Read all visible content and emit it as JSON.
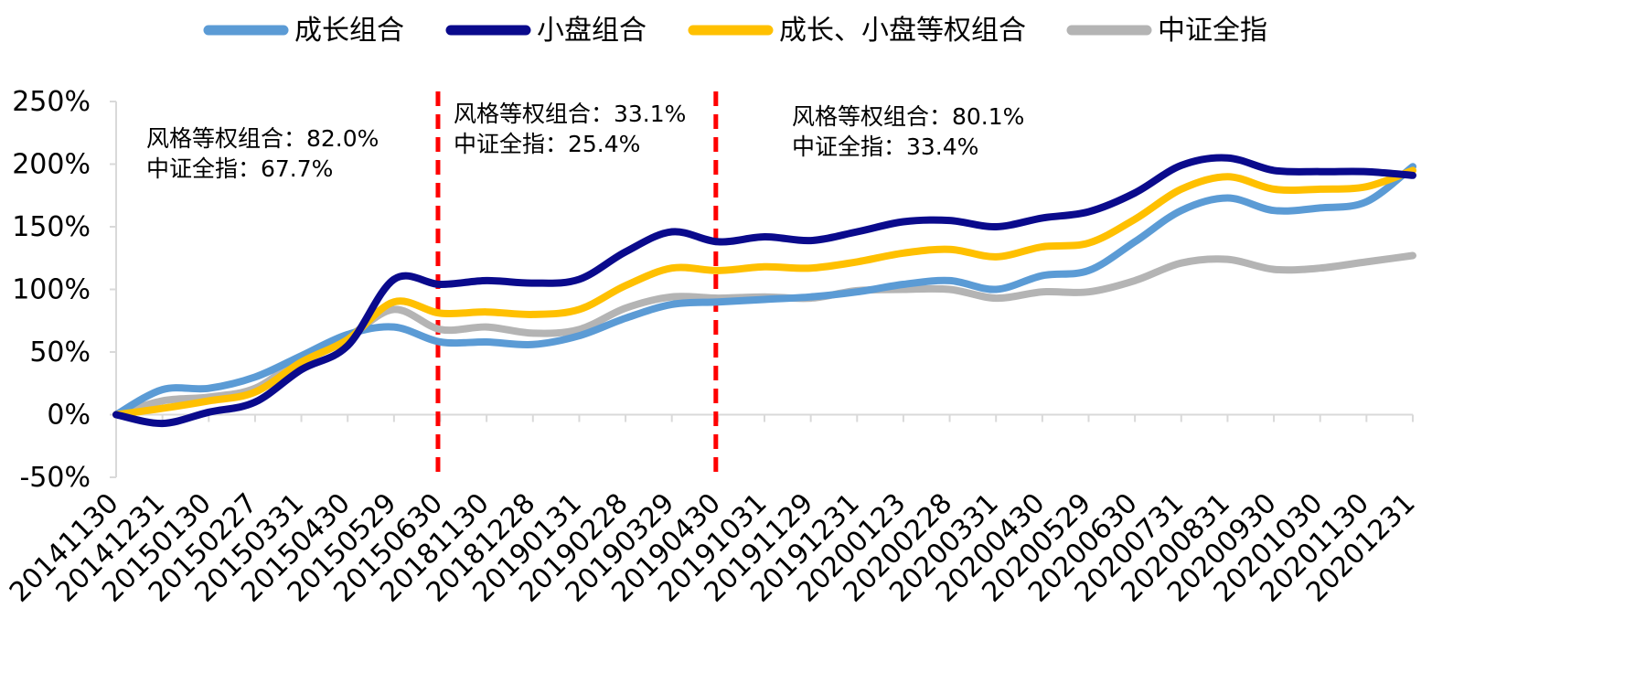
{
  "chart_data": {
    "type": "line",
    "title": "",
    "xlabel": "",
    "ylabel": "",
    "ylim": [
      -50,
      250
    ],
    "yticks": [
      "250%",
      "200%",
      "150%",
      "100%",
      "50%",
      "0%",
      "-50%"
    ],
    "ytick_values": [
      250,
      200,
      150,
      100,
      50,
      0,
      -50
    ],
    "categories": [
      "20141130",
      "20141231",
      "20150130",
      "20150227",
      "20150331",
      "20150430",
      "20150529",
      "20150630",
      "20181130",
      "20181228",
      "20190131",
      "20190228",
      "20190329",
      "20190430",
      "20191031",
      "20191129",
      "20191231",
      "20200123",
      "20200228",
      "20200331",
      "20200430",
      "20200529",
      "20200630",
      "20200731",
      "20200831",
      "20200930",
      "20201030",
      "20201130",
      "20201231"
    ],
    "legend_position": "top",
    "series": [
      {
        "name": "成长组合",
        "color": "#5B9BD5",
        "values": [
          0,
          20,
          21,
          30,
          47,
          64,
          70,
          58,
          58,
          56,
          63,
          77,
          88,
          90,
          92,
          94,
          98,
          104,
          107,
          100,
          111,
          115,
          138,
          163,
          173,
          163,
          165,
          170,
          198
        ]
      },
      {
        "name": "小盘组合",
        "color": "#0A0A8C",
        "values": [
          0,
          -7,
          2,
          10,
          36,
          55,
          108,
          104,
          107,
          105,
          108,
          130,
          146,
          138,
          142,
          139,
          146,
          154,
          155,
          150,
          157,
          162,
          177,
          199,
          205,
          195,
          194,
          194,
          191
        ]
      },
      {
        "name": "成长、小盘等权组合",
        "color": "#FFC000",
        "values": [
          0,
          5,
          11,
          18,
          42,
          60,
          90,
          81,
          82,
          80,
          84,
          103,
          117,
          115,
          118,
          117,
          122,
          129,
          132,
          126,
          134,
          137,
          156,
          180,
          190,
          180,
          180,
          182,
          195
        ]
      },
      {
        "name": "中证全指",
        "color": "#B4B4B4",
        "values": [
          0,
          11,
          14,
          21,
          45,
          62,
          84,
          68,
          70,
          65,
          68,
          85,
          94,
          93,
          94,
          93,
          99,
          100,
          100,
          93,
          98,
          98,
          107,
          121,
          124,
          116,
          117,
          122,
          127
        ]
      }
    ],
    "dividers": [
      {
        "after_category": "20150630",
        "color": "#FF0000"
      },
      {
        "after_category": "20190430",
        "color": "#FF0000"
      }
    ],
    "annotations": [
      {
        "region": "left",
        "lines": [
          "风格等权组合：82.0%",
          "中证全指：67.7%"
        ]
      },
      {
        "region": "middle",
        "lines": [
          "风格等权组合：33.1%",
          "中证全指：25.4%"
        ]
      },
      {
        "region": "right",
        "lines": [
          "风格等权组合：80.1%",
          "中证全指：33.4%"
        ]
      }
    ]
  },
  "colors": {
    "axis": "#D9D9D9",
    "divider": "#FF0000"
  }
}
